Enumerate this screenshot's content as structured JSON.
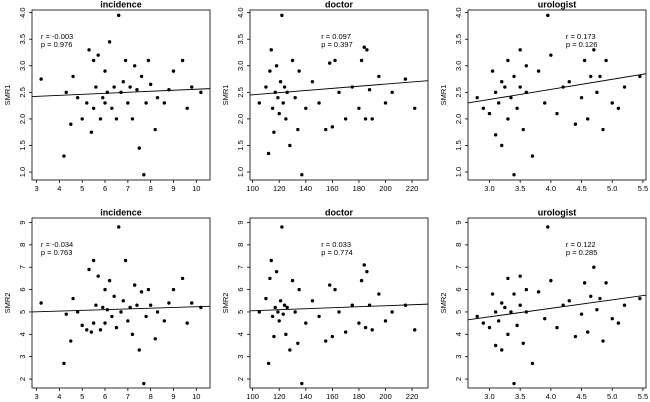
{
  "chart_data": [
    {
      "type": "scatter",
      "title": "incidence",
      "ylabel": "SMR1",
      "x": [
        3.2,
        4.2,
        4.3,
        4.5,
        4.6,
        4.8,
        5.0,
        5.2,
        5.3,
        5.4,
        5.5,
        5.5,
        5.6,
        5.7,
        5.8,
        5.9,
        6.0,
        6.0,
        6.1,
        6.2,
        6.3,
        6.4,
        6.5,
        6.6,
        6.7,
        6.8,
        6.9,
        7.0,
        7.1,
        7.2,
        7.3,
        7.4,
        7.5,
        7.6,
        7.7,
        7.8,
        7.9,
        8.0,
        8.2,
        8.3,
        8.6,
        8.8,
        9.0,
        9.4,
        9.6,
        9.8,
        10.2
      ],
      "values": [
        2.75,
        1.3,
        2.5,
        1.9,
        2.8,
        2.4,
        2.0,
        2.3,
        3.3,
        1.75,
        2.2,
        3.1,
        2.6,
        3.2,
        2.0,
        2.4,
        2.3,
        2.9,
        2.5,
        3.45,
        2.2,
        2.6,
        2.0,
        3.95,
        2.5,
        2.7,
        3.1,
        2.3,
        2.6,
        2.0,
        3.0,
        2.55,
        1.45,
        2.8,
        0.95,
        2.3,
        3.1,
        2.65,
        1.8,
        2.4,
        2.3,
        2.55,
        2.9,
        3.1,
        2.2,
        2.6,
        2.5
      ],
      "xlim": [
        2.8,
        10.6
      ],
      "xticks": [
        3,
        4,
        5,
        6,
        7,
        8,
        9,
        10
      ],
      "ylim": [
        0.85,
        4.05
      ],
      "yticks": [
        {
          "value": 1,
          "label": "1.0"
        },
        1.5,
        {
          "value": 2,
          "label": "2.0"
        },
        2.5,
        {
          "value": 3,
          "label": "3.0"
        },
        3.5,
        {
          "value": 4,
          "label": "4.0"
        }
      ],
      "trendline": {
        "x": [
          2.8,
          10.6
        ],
        "y": [
          2.42,
          2.57
        ]
      },
      "annotations": [
        "r = -0.003",
        "p = 0.976"
      ]
    },
    {
      "type": "scatter",
      "title": "doctor",
      "ylabel": "SMR1",
      "x": [
        105,
        110,
        112,
        113,
        114,
        115,
        116,
        117,
        118,
        119,
        120,
        121,
        122,
        123,
        124,
        125,
        126,
        128,
        130,
        132,
        134,
        135,
        137,
        140,
        145,
        150,
        155,
        158,
        160,
        162,
        165,
        170,
        175,
        180,
        182,
        184,
        185,
        186,
        188,
        190,
        195,
        200,
        205,
        215,
        222
      ],
      "values": [
        2.3,
        2.6,
        1.35,
        2.9,
        3.3,
        2.2,
        1.75,
        2.5,
        3.0,
        2.4,
        2.1,
        2.7,
        3.95,
        2.3,
        2.6,
        2.0,
        2.5,
        1.5,
        3.1,
        2.4,
        1.8,
        2.9,
        0.95,
        2.2,
        2.7,
        2.3,
        1.8,
        3.05,
        1.85,
        3.1,
        2.5,
        2.0,
        2.6,
        2.2,
        3.1,
        3.35,
        2.0,
        3.3,
        2.55,
        2.0,
        2.8,
        2.3,
        2.5,
        2.75,
        2.2
      ],
      "xlim": [
        98,
        232
      ],
      "xticks": [
        100,
        120,
        140,
        160,
        180,
        200,
        220
      ],
      "ylim": [
        0.85,
        4.05
      ],
      "yticks": [
        {
          "value": 1,
          "label": "1.0"
        },
        1.5,
        {
          "value": 2,
          "label": "2.0"
        },
        2.5,
        {
          "value": 3,
          "label": "3.0"
        },
        3.5,
        {
          "value": 4,
          "label": "4.0"
        }
      ],
      "trendline": {
        "x": [
          98,
          232
        ],
        "y": [
          2.45,
          2.72
        ]
      },
      "annotations": [
        "r = 0.097",
        "p = 0.397"
      ]
    },
    {
      "type": "scatter",
      "title": "urologist",
      "ylabel": "SMR1",
      "x": [
        2.8,
        2.9,
        3.0,
        3.05,
        3.1,
        3.1,
        3.15,
        3.2,
        3.2,
        3.25,
        3.3,
        3.3,
        3.35,
        3.4,
        3.4,
        3.45,
        3.5,
        3.5,
        3.55,
        3.6,
        3.6,
        3.7,
        3.8,
        3.9,
        3.95,
        4.0,
        4.1,
        4.2,
        4.3,
        4.4,
        4.5,
        4.55,
        4.6,
        4.65,
        4.7,
        4.75,
        4.8,
        4.85,
        4.9,
        5.0,
        5.1,
        5.2,
        5.45
      ],
      "values": [
        2.4,
        2.2,
        2.1,
        2.9,
        2.5,
        1.7,
        2.3,
        2.7,
        1.5,
        2.6,
        3.1,
        2.0,
        2.4,
        0.95,
        2.8,
        2.2,
        3.3,
        2.6,
        1.8,
        2.5,
        3.0,
        1.3,
        2.9,
        2.3,
        3.95,
        3.2,
        2.1,
        2.6,
        2.7,
        1.9,
        2.4,
        3.1,
        2.0,
        2.8,
        3.3,
        2.5,
        2.8,
        1.8,
        3.1,
        2.3,
        2.2,
        2.6,
        2.8
      ],
      "xlim": [
        2.65,
        5.55
      ],
      "xticks": [
        {
          "value": 3,
          "label": "3.0"
        },
        3.5,
        {
          "value": 4,
          "label": "4.0"
        },
        4.5,
        {
          "value": 5,
          "label": "5.0"
        },
        5.5
      ],
      "ylim": [
        0.85,
        4.05
      ],
      "yticks": [
        {
          "value": 1,
          "label": "1.0"
        },
        1.5,
        {
          "value": 2,
          "label": "2.0"
        },
        2.5,
        {
          "value": 3,
          "label": "3.0"
        },
        3.5,
        {
          "value": 4,
          "label": "4.0"
        }
      ],
      "trendline": {
        "x": [
          2.65,
          5.55
        ],
        "y": [
          2.3,
          2.85
        ]
      },
      "annotations": [
        "r = 0.173",
        "p = 0.126"
      ]
    },
    {
      "type": "scatter",
      "title": "incidence",
      "ylabel": "SMR2",
      "x": [
        3.2,
        4.2,
        4.3,
        4.5,
        4.6,
        4.8,
        5.0,
        5.2,
        5.3,
        5.4,
        5.5,
        5.5,
        5.6,
        5.7,
        5.8,
        5.9,
        6.0,
        6.0,
        6.1,
        6.2,
        6.3,
        6.4,
        6.5,
        6.6,
        6.7,
        6.8,
        6.9,
        7.0,
        7.1,
        7.2,
        7.3,
        7.4,
        7.5,
        7.6,
        7.7,
        7.8,
        7.9,
        8.0,
        8.2,
        8.3,
        8.6,
        8.8,
        9.0,
        9.4,
        9.6,
        9.8,
        10.2
      ],
      "values": [
        5.4,
        2.7,
        4.9,
        3.7,
        5.6,
        5.0,
        4.4,
        4.2,
        6.9,
        4.1,
        4.5,
        7.3,
        5.3,
        6.6,
        4.2,
        5.2,
        4.5,
        6.0,
        5.1,
        6.4,
        4.8,
        5.7,
        4.3,
        8.8,
        5.0,
        5.5,
        7.3,
        4.6,
        5.2,
        4.0,
        6.2,
        5.3,
        3.3,
        5.9,
        1.8,
        4.8,
        6.0,
        5.3,
        3.8,
        5.0,
        4.6,
        5.4,
        6.0,
        6.5,
        4.5,
        5.4,
        5.2
      ],
      "xlim": [
        2.8,
        10.6
      ],
      "xticks": [
        3,
        4,
        5,
        6,
        7,
        8,
        9,
        10
      ],
      "ylim": [
        1.6,
        9.2
      ],
      "yticks": [
        2,
        3,
        4,
        5,
        6,
        7,
        8,
        9
      ],
      "trendline": {
        "x": [
          2.8,
          10.6
        ],
        "y": [
          5.0,
          5.25
        ]
      },
      "annotations": [
        "r = -0.034",
        "p = 0.763"
      ]
    },
    {
      "type": "scatter",
      "title": "doctor",
      "ylabel": "SMR2",
      "x": [
        105,
        110,
        112,
        113,
        114,
        115,
        116,
        117,
        118,
        119,
        120,
        121,
        122,
        123,
        124,
        125,
        126,
        128,
        130,
        132,
        134,
        135,
        137,
        140,
        145,
        150,
        155,
        158,
        160,
        162,
        165,
        170,
        175,
        180,
        182,
        184,
        185,
        186,
        188,
        190,
        195,
        200,
        205,
        215,
        222
      ],
      "values": [
        5.0,
        5.6,
        2.7,
        6.5,
        7.3,
        4.8,
        3.9,
        5.2,
        6.8,
        5.0,
        4.6,
        5.5,
        8.8,
        4.9,
        5.3,
        4.0,
        5.2,
        3.3,
        6.4,
        5.0,
        3.6,
        6.0,
        1.8,
        4.5,
        5.5,
        4.8,
        3.7,
        6.2,
        3.9,
        6.0,
        5.0,
        4.1,
        5.3,
        4.5,
        6.4,
        7.1,
        4.3,
        6.8,
        5.3,
        4.2,
        5.8,
        4.6,
        5.0,
        5.3,
        4.2
      ],
      "xlim": [
        98,
        232
      ],
      "xticks": [
        100,
        120,
        140,
        160,
        180,
        200,
        220
      ],
      "ylim": [
        1.6,
        9.2
      ],
      "yticks": [
        2,
        3,
        4,
        5,
        6,
        7,
        8,
        9
      ],
      "trendline": {
        "x": [
          98,
          232
        ],
        "y": [
          5.05,
          5.35
        ]
      },
      "annotations": [
        "r = 0.033",
        "p = 0.774"
      ]
    },
    {
      "type": "scatter",
      "title": "urologist",
      "ylabel": "SMR2",
      "x": [
        2.8,
        2.9,
        3.0,
        3.05,
        3.1,
        3.1,
        3.15,
        3.2,
        3.2,
        3.25,
        3.3,
        3.3,
        3.35,
        3.4,
        3.4,
        3.45,
        3.5,
        3.5,
        3.55,
        3.6,
        3.6,
        3.7,
        3.8,
        3.9,
        3.95,
        4.0,
        4.1,
        4.2,
        4.3,
        4.4,
        4.5,
        4.55,
        4.6,
        4.65,
        4.7,
        4.75,
        4.8,
        4.85,
        4.9,
        5.0,
        5.1,
        5.2,
        5.45
      ],
      "values": [
        4.8,
        4.5,
        4.3,
        5.8,
        5.0,
        3.5,
        4.6,
        5.4,
        3.3,
        5.2,
        6.5,
        4.0,
        5.0,
        1.8,
        5.8,
        4.4,
        6.6,
        5.3,
        3.6,
        5.0,
        6.0,
        2.7,
        5.9,
        4.7,
        8.8,
        6.4,
        4.3,
        5.3,
        5.5,
        3.9,
        4.9,
        6.3,
        4.1,
        5.7,
        7.0,
        5.1,
        5.6,
        3.7,
        6.3,
        4.7,
        4.5,
        5.3,
        5.6
      ],
      "xlim": [
        2.65,
        5.55
      ],
      "xticks": [
        {
          "value": 3,
          "label": "3.0"
        },
        3.5,
        {
          "value": 4,
          "label": "4.0"
        },
        4.5,
        {
          "value": 5,
          "label": "5.0"
        },
        5.5
      ],
      "ylim": [
        1.6,
        9.2
      ],
      "yticks": [
        2,
        3,
        4,
        5,
        6,
        7,
        8,
        9
      ],
      "trendline": {
        "x": [
          2.65,
          5.55
        ],
        "y": [
          4.65,
          5.75
        ]
      },
      "annotations": [
        "r = 0.122",
        "p = 0.285"
      ]
    }
  ]
}
